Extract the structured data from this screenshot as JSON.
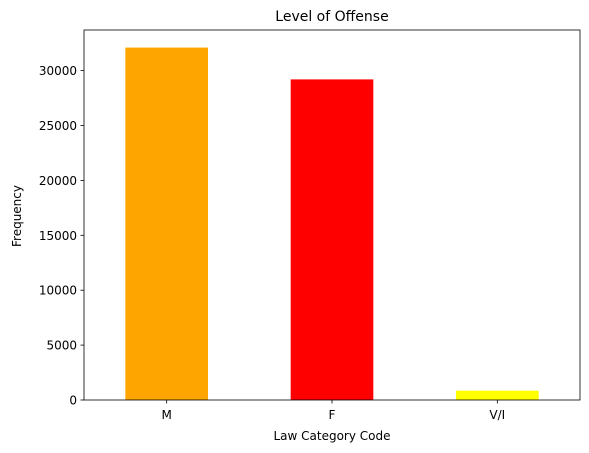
{
  "chart_data": {
    "type": "bar",
    "title": "Level of Offense",
    "xlabel": "Law Category Code",
    "ylabel": "Frequency",
    "categories": [
      "M",
      "F",
      "V/I"
    ],
    "values": [
      32100,
      29200,
      850
    ],
    "colors": [
      "#ffa500",
      "#ff0000",
      "#ffff00"
    ],
    "ylim": [
      0,
      33700
    ],
    "yticks": [
      0,
      5000,
      10000,
      15000,
      20000,
      25000,
      30000
    ],
    "grid": false,
    "legend": "none"
  }
}
